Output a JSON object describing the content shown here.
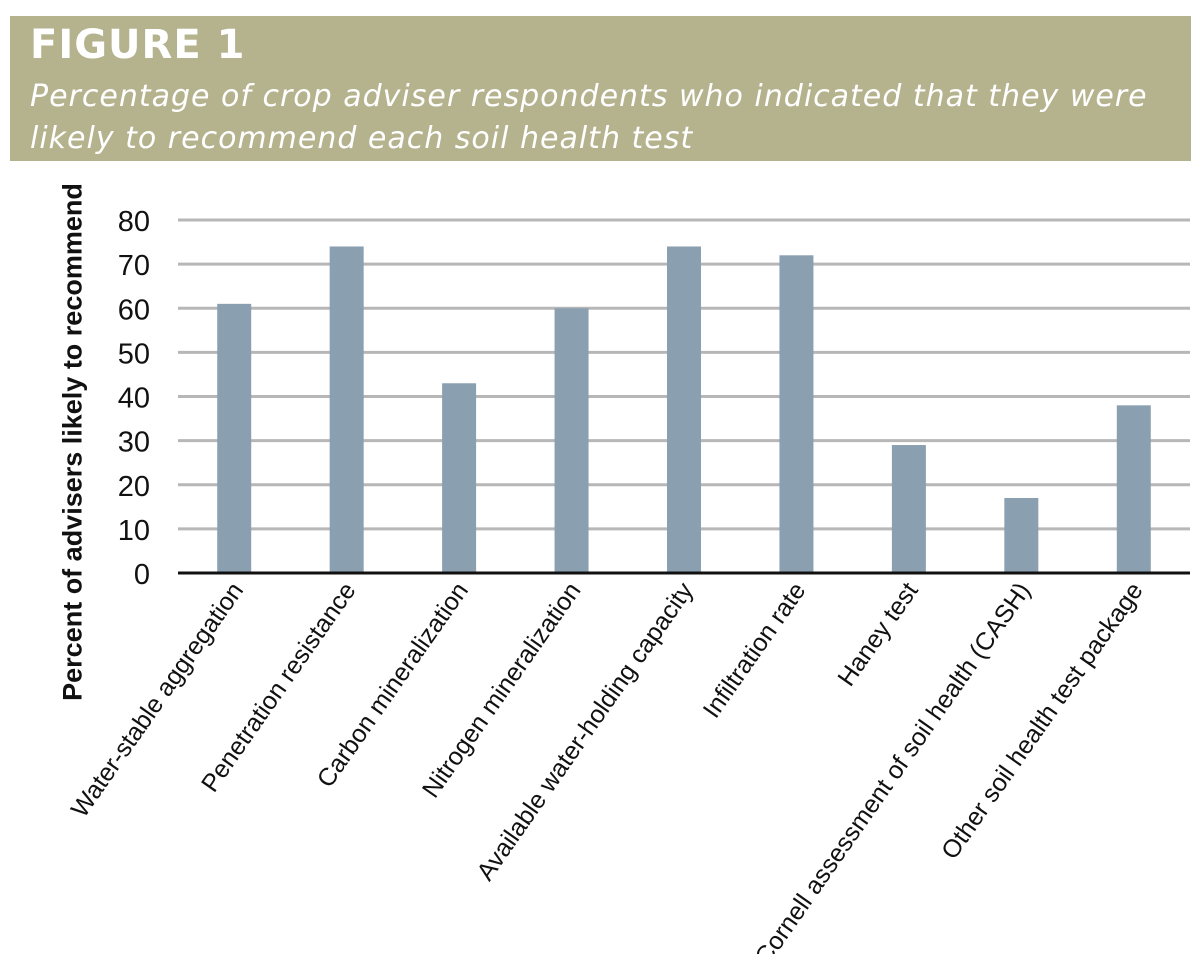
{
  "header": {
    "figure_label": "FIGURE 1",
    "subtitle_line1": "Percentage of crop adviser respondents who indicated that they were",
    "subtitle_line2": "likely to recommend each soil health test"
  },
  "chart_data": {
    "type": "bar",
    "title": "Percentage of crop adviser respondents who indicated that they were likely to recommend each soil health test",
    "ylabel": "Percent of advisers likely to recommend",
    "xlabel": "",
    "ylim": [
      0,
      80
    ],
    "yticks": [
      0,
      10,
      20,
      30,
      40,
      50,
      60,
      70,
      80
    ],
    "grid": true,
    "legend": "none",
    "categories": [
      "Water-stable aggregation",
      "Penetration resistance",
      "Carbon mineralization",
      "Nitrogen mineralization",
      "Available water-holding capacity",
      "Infiltration rate",
      "Haney test",
      "Cornell assessment of soil health (CASH)",
      "Other soil health test package"
    ],
    "values": [
      61,
      74,
      43,
      60,
      74,
      72,
      29,
      17,
      38
    ],
    "colors": {
      "bar": "#8a9fb0",
      "grid": "#b7b7b7",
      "axis": "#111111",
      "header_bg": "#b5b28e"
    }
  }
}
